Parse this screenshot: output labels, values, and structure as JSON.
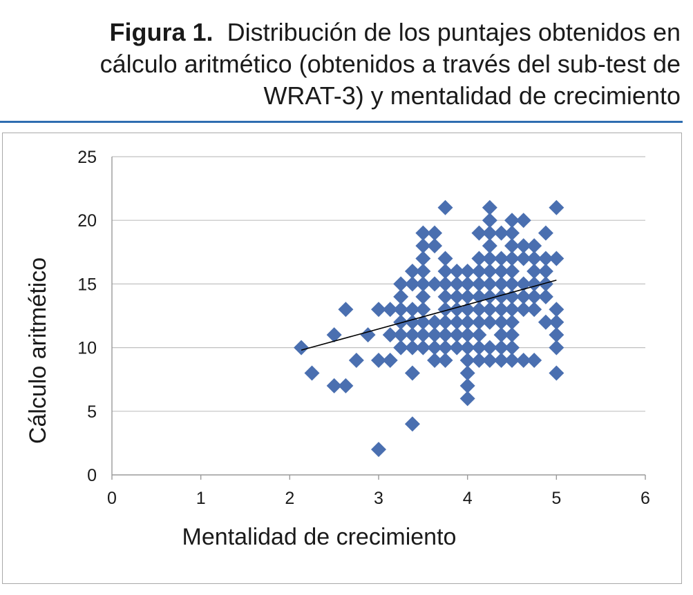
{
  "caption": {
    "label": "Figura 1.",
    "line1": "Distribución de los puntajes obtenidos en",
    "line2": "cálculo aritmético (obtenidos a través del sub-test de",
    "line3": "WRAT-3) y mentalidad de crecimiento"
  },
  "colors": {
    "rule": "#2e6db0",
    "marker": "#4a6fb0",
    "trend": "#000000",
    "grid": "#c0c0c0"
  },
  "chart_data": {
    "type": "scatter",
    "xlabel": "Mentalidad de crecimiento",
    "ylabel": "Cálculo aritmético",
    "xlim": [
      0,
      6
    ],
    "ylim": [
      0,
      25
    ],
    "xticks": [
      0,
      1,
      2,
      3,
      4,
      5,
      6
    ],
    "yticks": [
      0,
      5,
      10,
      15,
      20,
      25
    ],
    "grid": "horizontal",
    "marker": "diamond",
    "trendline": {
      "x": [
        2.13,
        5.0
      ],
      "y": [
        9.8,
        15.3
      ]
    },
    "points": [
      [
        2.13,
        10
      ],
      [
        2.25,
        8
      ],
      [
        2.5,
        11
      ],
      [
        2.5,
        7
      ],
      [
        2.63,
        13
      ],
      [
        2.63,
        7
      ],
      [
        2.75,
        9
      ],
      [
        2.88,
        11
      ],
      [
        3,
        13
      ],
      [
        3,
        9
      ],
      [
        3,
        2
      ],
      [
        3.13,
        13
      ],
      [
        3.13,
        11
      ],
      [
        3.13,
        9
      ],
      [
        3.25,
        15
      ],
      [
        3.25,
        14
      ],
      [
        3.25,
        13
      ],
      [
        3.25,
        12
      ],
      [
        3.25,
        11
      ],
      [
        3.25,
        10
      ],
      [
        3.38,
        16
      ],
      [
        3.38,
        15
      ],
      [
        3.38,
        13
      ],
      [
        3.38,
        12
      ],
      [
        3.38,
        11
      ],
      [
        3.38,
        10
      ],
      [
        3.38,
        8
      ],
      [
        3.38,
        4
      ],
      [
        3.5,
        19
      ],
      [
        3.5,
        18
      ],
      [
        3.5,
        17
      ],
      [
        3.5,
        16
      ],
      [
        3.5,
        15
      ],
      [
        3.5,
        14
      ],
      [
        3.5,
        13
      ],
      [
        3.5,
        12
      ],
      [
        3.5,
        11
      ],
      [
        3.5,
        10
      ],
      [
        3.63,
        19
      ],
      [
        3.63,
        18
      ],
      [
        3.63,
        15
      ],
      [
        3.63,
        12
      ],
      [
        3.63,
        11
      ],
      [
        3.63,
        10
      ],
      [
        3.63,
        9
      ],
      [
        3.75,
        21
      ],
      [
        3.75,
        17
      ],
      [
        3.75,
        16
      ],
      [
        3.75,
        15
      ],
      [
        3.75,
        14
      ],
      [
        3.75,
        13
      ],
      [
        3.75,
        12
      ],
      [
        3.75,
        11
      ],
      [
        3.75,
        10
      ],
      [
        3.75,
        9
      ],
      [
        3.88,
        16
      ],
      [
        3.88,
        15
      ],
      [
        3.88,
        14
      ],
      [
        3.88,
        13
      ],
      [
        3.88,
        12
      ],
      [
        3.88,
        11
      ],
      [
        3.88,
        10
      ],
      [
        4,
        16
      ],
      [
        4,
        15
      ],
      [
        4,
        14
      ],
      [
        4,
        13
      ],
      [
        4,
        12
      ],
      [
        4,
        11
      ],
      [
        4,
        10
      ],
      [
        4,
        9
      ],
      [
        4,
        8
      ],
      [
        4,
        7
      ],
      [
        4,
        6
      ],
      [
        4.13,
        19
      ],
      [
        4.13,
        17
      ],
      [
        4.13,
        16
      ],
      [
        4.13,
        15
      ],
      [
        4.13,
        14
      ],
      [
        4.13,
        13
      ],
      [
        4.13,
        12
      ],
      [
        4.13,
        11
      ],
      [
        4.13,
        10
      ],
      [
        4.13,
        9
      ],
      [
        4.25,
        21
      ],
      [
        4.25,
        20
      ],
      [
        4.25,
        19
      ],
      [
        4.25,
        18
      ],
      [
        4.25,
        17
      ],
      [
        4.25,
        16
      ],
      [
        4.25,
        15
      ],
      [
        4.25,
        14
      ],
      [
        4.25,
        13
      ],
      [
        4.25,
        12
      ],
      [
        4.25,
        10
      ],
      [
        4.25,
        9
      ],
      [
        4.38,
        19
      ],
      [
        4.38,
        17
      ],
      [
        4.38,
        16
      ],
      [
        4.38,
        15
      ],
      [
        4.38,
        14
      ],
      [
        4.38,
        13
      ],
      [
        4.38,
        12
      ],
      [
        4.38,
        11
      ],
      [
        4.38,
        10
      ],
      [
        4.38,
        9
      ],
      [
        4.5,
        20
      ],
      [
        4.5,
        19
      ],
      [
        4.5,
        18
      ],
      [
        4.5,
        17
      ],
      [
        4.5,
        16
      ],
      [
        4.5,
        15
      ],
      [
        4.5,
        14
      ],
      [
        4.5,
        13
      ],
      [
        4.5,
        12
      ],
      [
        4.5,
        11
      ],
      [
        4.5,
        10
      ],
      [
        4.5,
        9
      ],
      [
        4.63,
        20
      ],
      [
        4.63,
        18
      ],
      [
        4.63,
        17
      ],
      [
        4.63,
        15
      ],
      [
        4.63,
        14
      ],
      [
        4.63,
        13
      ],
      [
        4.63,
        9
      ],
      [
        4.75,
        18
      ],
      [
        4.75,
        17
      ],
      [
        4.75,
        16
      ],
      [
        4.75,
        15
      ],
      [
        4.75,
        14
      ],
      [
        4.75,
        13
      ],
      [
        4.75,
        9
      ],
      [
        4.88,
        19
      ],
      [
        4.88,
        17
      ],
      [
        4.88,
        16
      ],
      [
        4.88,
        15
      ],
      [
        4.88,
        14
      ],
      [
        4.88,
        12
      ],
      [
        5,
        21
      ],
      [
        5,
        17
      ],
      [
        5,
        13
      ],
      [
        5,
        12
      ],
      [
        5,
        11
      ],
      [
        5,
        10
      ],
      [
        5,
        8
      ]
    ]
  }
}
